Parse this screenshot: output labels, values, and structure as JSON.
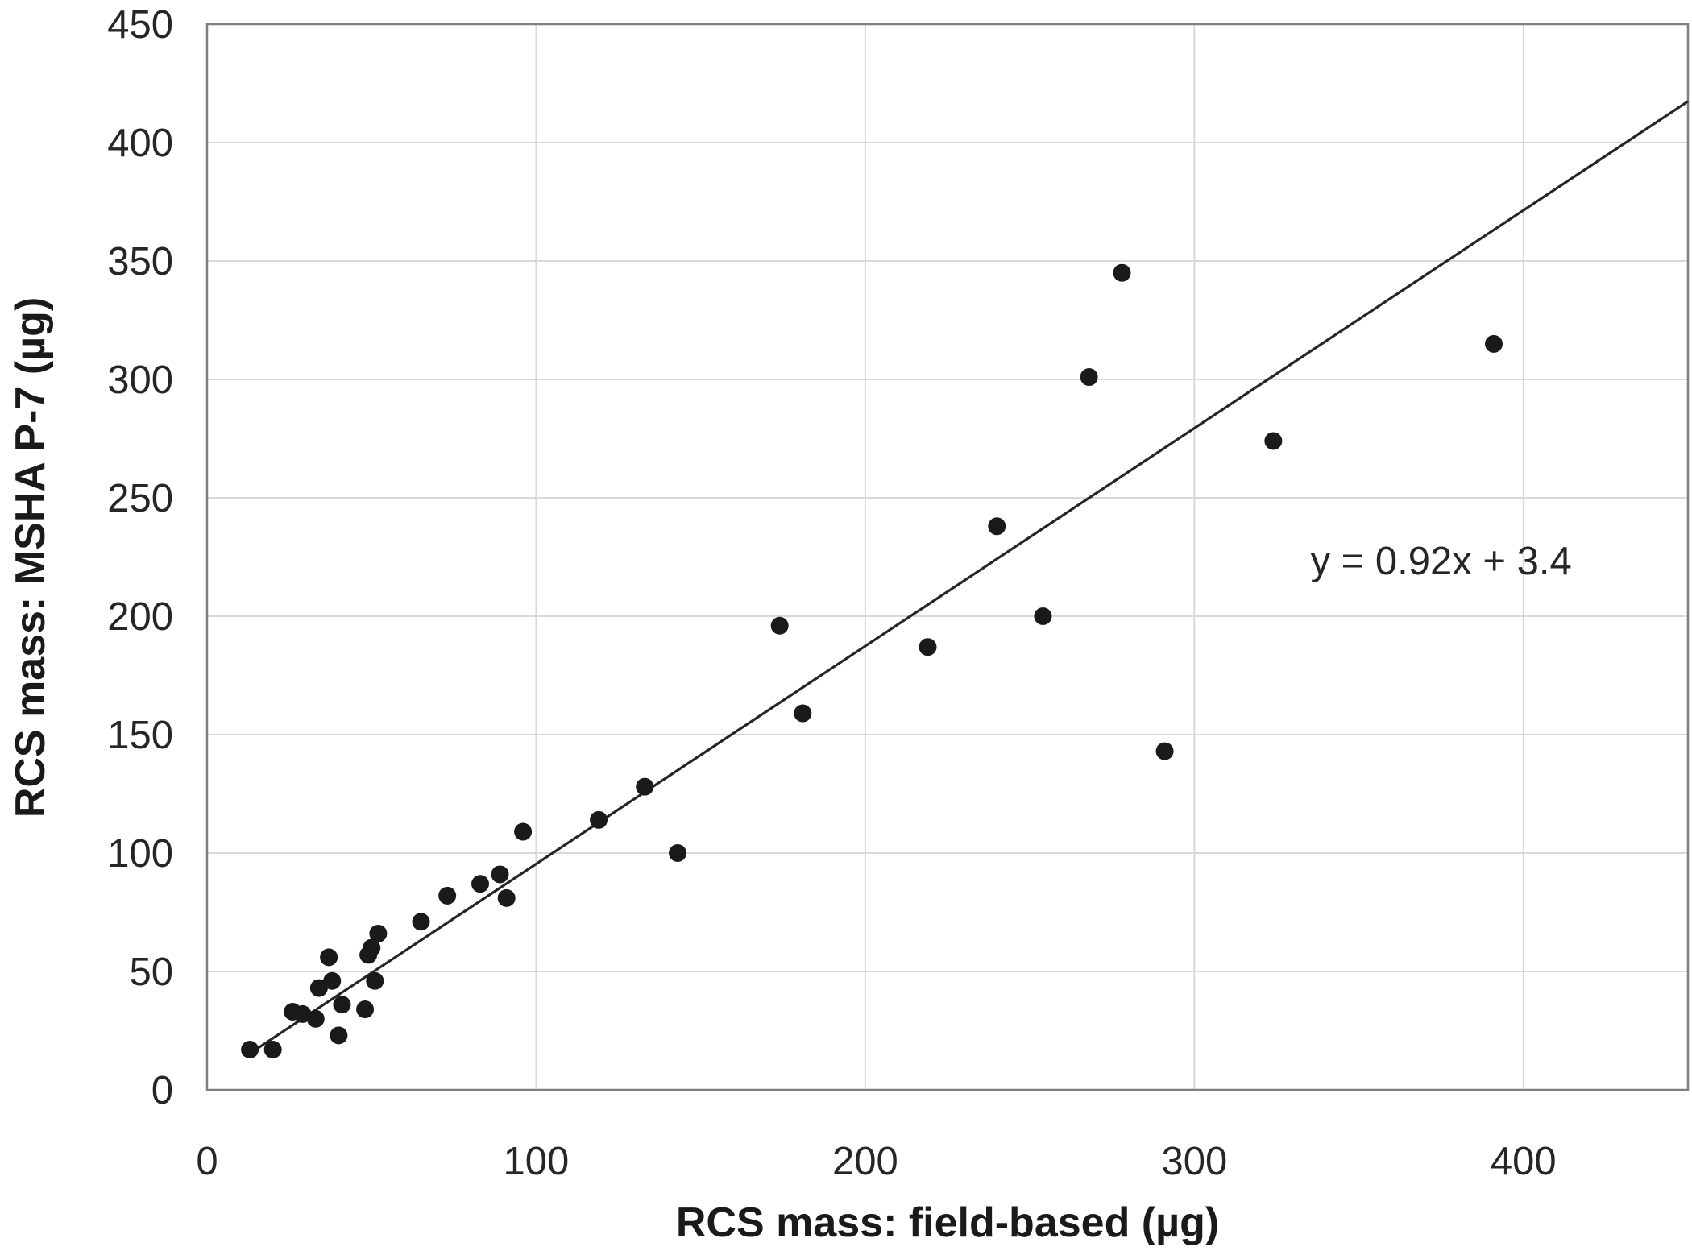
{
  "chart_data": {
    "type": "scatter",
    "title": "",
    "xlabel": "RCS mass: field-based (µg)",
    "ylabel": "RCS mass: MSHA P-7 (µg)",
    "xlim": [
      0,
      450
    ],
    "ylim": [
      0,
      450
    ],
    "x_ticks": [
      0,
      100,
      200,
      300,
      400
    ],
    "y_ticks": [
      0,
      50,
      100,
      150,
      200,
      250,
      300,
      350,
      400,
      450
    ],
    "grid": true,
    "legend": "none",
    "points": [
      [
        13,
        17
      ],
      [
        20,
        17
      ],
      [
        26,
        33
      ],
      [
        29,
        32
      ],
      [
        33,
        30
      ],
      [
        34,
        43
      ],
      [
        37,
        56
      ],
      [
        38,
        46
      ],
      [
        40,
        23
      ],
      [
        41,
        36
      ],
      [
        48,
        34
      ],
      [
        49,
        57
      ],
      [
        50,
        60
      ],
      [
        51,
        46
      ],
      [
        52,
        66
      ],
      [
        65,
        71
      ],
      [
        73,
        82
      ],
      [
        83,
        87
      ],
      [
        89,
        91
      ],
      [
        91,
        81
      ],
      [
        96,
        109
      ],
      [
        119,
        114
      ],
      [
        133,
        128
      ],
      [
        143,
        100
      ],
      [
        174,
        196
      ],
      [
        181,
        159
      ],
      [
        219,
        187
      ],
      [
        240,
        238
      ],
      [
        254,
        200
      ],
      [
        268,
        301
      ],
      [
        278,
        345
      ],
      [
        291,
        143
      ],
      [
        324,
        274
      ],
      [
        391,
        315
      ]
    ],
    "trendline": {
      "slope": 0.92,
      "intercept": 3.4,
      "x_range": [
        13,
        450
      ]
    },
    "annotation": {
      "text": "y = 0.92x + 3.4",
      "x": 375,
      "y": 223
    },
    "colors": {
      "marker": "#1a1a1a",
      "trendline": "#262626",
      "gridline": "#d9d9d9",
      "border": "#7f7f7f",
      "tick_text": "#262626"
    }
  }
}
